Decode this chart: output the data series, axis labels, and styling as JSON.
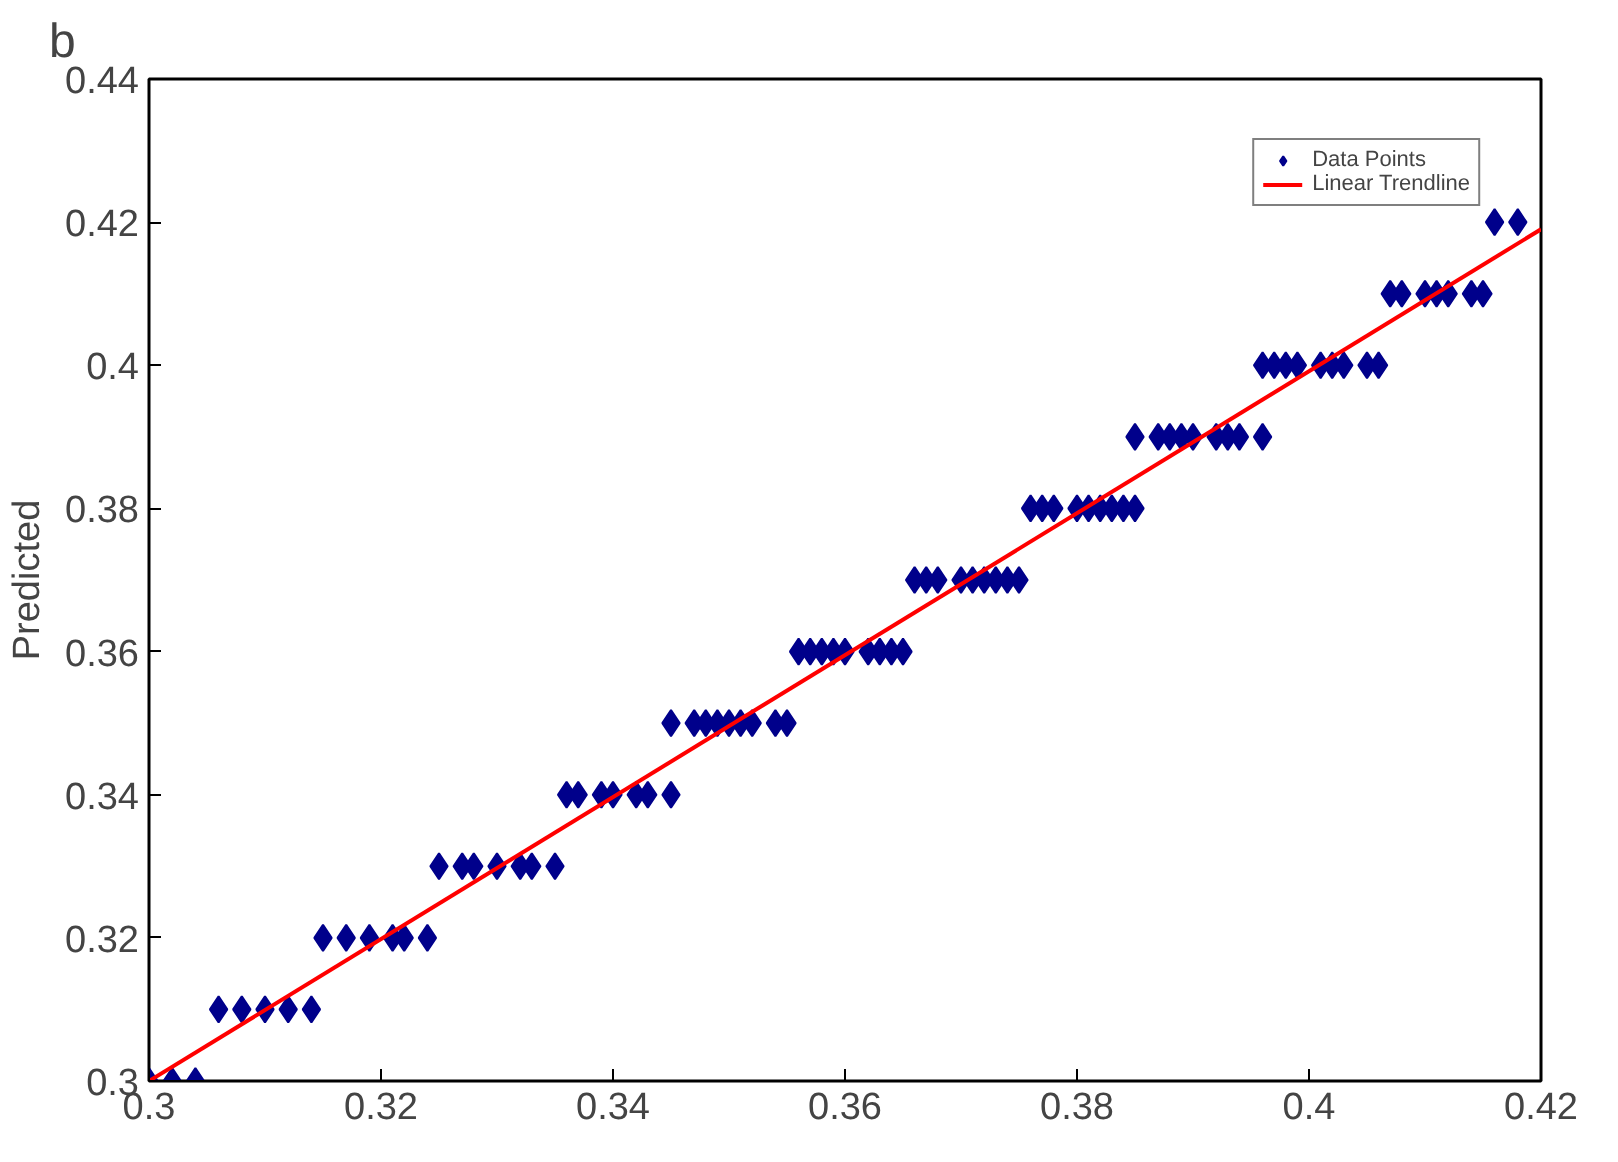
{
  "chart_data": {
    "type": "scatter",
    "title": "b",
    "ylabel": "Predicted",
    "xlim": [
      0.3,
      0.42
    ],
    "ylim": [
      0.3,
      0.44
    ],
    "xticks": [
      0.3,
      0.32,
      0.34,
      0.36,
      0.38,
      0.4,
      0.42
    ],
    "yticks": [
      0.3,
      0.32,
      0.34,
      0.36,
      0.38,
      0.4,
      0.42,
      0.44
    ],
    "grid": false,
    "legend": "top right",
    "series": [
      {
        "name": "Data Points",
        "marker": "diamond",
        "color": "#00008b",
        "x": [
          0.3,
          0.302,
          0.304,
          0.306,
          0.308,
          0.31,
          0.312,
          0.314,
          0.315,
          0.317,
          0.319,
          0.321,
          0.322,
          0.324,
          0.325,
          0.327,
          0.328,
          0.33,
          0.332,
          0.333,
          0.335,
          0.336,
          0.337,
          0.339,
          0.34,
          0.342,
          0.343,
          0.345,
          0.345,
          0.347,
          0.348,
          0.349,
          0.35,
          0.351,
          0.352,
          0.354,
          0.355,
          0.356,
          0.357,
          0.358,
          0.359,
          0.36,
          0.362,
          0.363,
          0.364,
          0.365,
          0.366,
          0.367,
          0.368,
          0.37,
          0.371,
          0.372,
          0.373,
          0.374,
          0.375,
          0.376,
          0.377,
          0.378,
          0.38,
          0.381,
          0.382,
          0.383,
          0.384,
          0.385,
          0.385,
          0.387,
          0.388,
          0.389,
          0.39,
          0.392,
          0.393,
          0.394,
          0.396,
          0.396,
          0.397,
          0.398,
          0.399,
          0.401,
          0.402,
          0.403,
          0.405,
          0.406,
          0.407,
          0.408,
          0.41,
          0.411,
          0.412,
          0.414,
          0.415,
          0.416,
          0.418
        ],
        "values": [
          0.3,
          0.3,
          0.3,
          0.31,
          0.31,
          0.31,
          0.31,
          0.31,
          0.32,
          0.32,
          0.32,
          0.32,
          0.32,
          0.32,
          0.33,
          0.33,
          0.33,
          0.33,
          0.33,
          0.33,
          0.33,
          0.34,
          0.34,
          0.34,
          0.34,
          0.34,
          0.34,
          0.34,
          0.35,
          0.35,
          0.35,
          0.35,
          0.35,
          0.35,
          0.35,
          0.35,
          0.35,
          0.36,
          0.36,
          0.36,
          0.36,
          0.36,
          0.36,
          0.36,
          0.36,
          0.36,
          0.37,
          0.37,
          0.37,
          0.37,
          0.37,
          0.37,
          0.37,
          0.37,
          0.37,
          0.38,
          0.38,
          0.38,
          0.38,
          0.38,
          0.38,
          0.38,
          0.38,
          0.38,
          0.39,
          0.39,
          0.39,
          0.39,
          0.39,
          0.39,
          0.39,
          0.39,
          0.39,
          0.4,
          0.4,
          0.4,
          0.4,
          0.4,
          0.4,
          0.4,
          0.4,
          0.4,
          0.41,
          0.41,
          0.41,
          0.41,
          0.41,
          0.41,
          0.41,
          0.42,
          0.42
        ]
      },
      {
        "name": "Linear Trendline",
        "type": "line",
        "color": "#ff0000",
        "x": [
          0.3,
          0.42
        ],
        "values": [
          0.3,
          0.419
        ]
      }
    ]
  }
}
